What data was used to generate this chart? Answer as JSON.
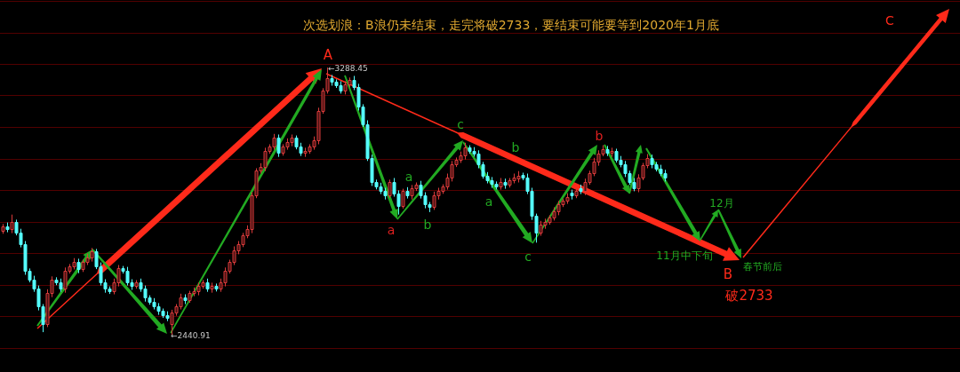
{
  "chart_data": {
    "type": "candlestick",
    "title": "次选划浪：B浪仍未结束，走完将破2733，要结束可能要等到2020年1月底",
    "categories": [
      null,
      null,
      null,
      null,
      null,
      null,
      null,
      null,
      null,
      null,
      null,
      null,
      null,
      null,
      null,
      null,
      null,
      null,
      null,
      null,
      null,
      null,
      null,
      null,
      null,
      null,
      null,
      null,
      null,
      null,
      null,
      null,
      null,
      null,
      null,
      null,
      null,
      null,
      null,
      null,
      null,
      null,
      null,
      null,
      null,
      null,
      null,
      null,
      null,
      null,
      null,
      null,
      null,
      null,
      null,
      null,
      null,
      null,
      null,
      null,
      null,
      null,
      null,
      null,
      null,
      null,
      null,
      null,
      null,
      null,
      null,
      null,
      null,
      null,
      null,
      null,
      null,
      null,
      null,
      null,
      null,
      null,
      null,
      null,
      null,
      null,
      null,
      null,
      null,
      null,
      null,
      null,
      null,
      null,
      null,
      null,
      null,
      null,
      null,
      null,
      null,
      null,
      null,
      null,
      null,
      null,
      null,
      null,
      null,
      null,
      null,
      null,
      null,
      null,
      null,
      null,
      null,
      null,
      null,
      null,
      null,
      null,
      null,
      null,
      null,
      null,
      null,
      null,
      null,
      null,
      null,
      null,
      null,
      null,
      null,
      null,
      null,
      null,
      null,
      null,
      null,
      null,
      null,
      null,
      null,
      null,
      null,
      null,
      null,
      null
    ],
    "ohlc": [
      [
        2770,
        2792,
        2761,
        2785
      ],
      [
        2785,
        2797,
        2766,
        2776
      ],
      [
        2776,
        2822,
        2763,
        2799
      ],
      [
        2799,
        2806,
        2756,
        2765
      ],
      [
        2765,
        2777,
        2718,
        2728
      ],
      [
        2728,
        2738,
        2631,
        2644
      ],
      [
        2644,
        2651,
        2607,
        2616
      ],
      [
        2616,
        2628,
        2577,
        2587
      ],
      [
        2587,
        2597,
        2518,
        2531
      ],
      [
        2531,
        2538,
        2449,
        2475
      ],
      [
        2475,
        2585,
        2465,
        2573
      ],
      [
        2573,
        2626,
        2560,
        2616
      ],
      [
        2616,
        2623,
        2598,
        2607
      ],
      [
        2607,
        2619,
        2577,
        2587
      ],
      [
        2587,
        2654,
        2574,
        2644
      ],
      [
        2644,
        2665,
        2635,
        2658
      ],
      [
        2658,
        2684,
        2648,
        2672
      ],
      [
        2672,
        2682,
        2636,
        2649
      ],
      [
        2649,
        2679,
        2640,
        2672
      ],
      [
        2672,
        2698,
        2662,
        2686
      ],
      [
        2686,
        2716,
        2673,
        2706
      ],
      [
        2706,
        2713,
        2649,
        2658
      ],
      [
        2658,
        2670,
        2597,
        2607
      ],
      [
        2607,
        2617,
        2574,
        2587
      ],
      [
        2587,
        2594,
        2570,
        2579
      ],
      [
        2579,
        2619,
        2569,
        2607
      ],
      [
        2607,
        2662,
        2594,
        2652
      ],
      [
        2652,
        2659,
        2635,
        2644
      ],
      [
        2644,
        2656,
        2597,
        2607
      ],
      [
        2607,
        2617,
        2583,
        2596
      ],
      [
        2596,
        2614,
        2587,
        2607
      ],
      [
        2607,
        2619,
        2577,
        2587
      ],
      [
        2587,
        2597,
        2546,
        2559
      ],
      [
        2559,
        2566,
        2536,
        2545
      ],
      [
        2545,
        2557,
        2521,
        2531
      ],
      [
        2531,
        2541,
        2504,
        2517
      ],
      [
        2517,
        2524,
        2494,
        2503
      ],
      [
        2503,
        2515,
        2484,
        2494
      ],
      [
        2475,
        2520,
        2440.91,
        2510
      ],
      [
        2510,
        2538,
        2501,
        2531
      ],
      [
        2531,
        2571,
        2521,
        2559
      ],
      [
        2559,
        2569,
        2538,
        2551
      ],
      [
        2551,
        2580,
        2542,
        2573
      ],
      [
        2573,
        2591,
        2563,
        2579
      ],
      [
        2579,
        2606,
        2566,
        2596
      ],
      [
        2596,
        2614,
        2587,
        2607
      ],
      [
        2607,
        2619,
        2577,
        2587
      ],
      [
        2587,
        2606,
        2574,
        2596
      ],
      [
        2596,
        2603,
        2578,
        2587
      ],
      [
        2587,
        2619,
        2577,
        2607
      ],
      [
        2607,
        2654,
        2594,
        2644
      ],
      [
        2644,
        2679,
        2635,
        2672
      ],
      [
        2672,
        2721,
        2662,
        2709
      ],
      [
        2709,
        2738,
        2696,
        2728
      ],
      [
        2728,
        2764,
        2719,
        2757
      ],
      [
        2757,
        2788,
        2747,
        2776
      ],
      [
        2776,
        2893,
        2763,
        2883
      ],
      [
        2883,
        2969,
        2874,
        2962
      ],
      [
        2962,
        2985,
        2952,
        2973
      ],
      [
        2973,
        3034,
        2960,
        3024
      ],
      [
        3024,
        3045,
        3015,
        3038
      ],
      [
        3038,
        3078,
        3028,
        3066
      ],
      [
        3066,
        3076,
        3005,
        3018
      ],
      [
        3018,
        3045,
        3009,
        3038
      ],
      [
        3038,
        3064,
        3028,
        3052
      ],
      [
        3052,
        3076,
        3039,
        3066
      ],
      [
        3066,
        3073,
        3029,
        3038
      ],
      [
        3038,
        3050,
        3008,
        3018
      ],
      [
        3018,
        3034,
        3005,
        3024
      ],
      [
        3024,
        3045,
        3015,
        3038
      ],
      [
        3038,
        3070,
        3028,
        3058
      ],
      [
        3058,
        3161,
        3045,
        3151
      ],
      [
        3151,
        3223,
        3142,
        3216
      ],
      [
        3216,
        3288.45,
        3206,
        3255
      ],
      [
        3255,
        3265,
        3231,
        3244
      ],
      [
        3244,
        3251,
        3224,
        3233
      ],
      [
        3233,
        3245,
        3206,
        3216
      ],
      [
        3216,
        3245,
        3203,
        3235
      ],
      [
        3235,
        3257,
        3226,
        3250
      ],
      [
        3250,
        3262,
        3217,
        3227
      ],
      [
        3227,
        3237,
        3152,
        3165
      ],
      [
        3165,
        3172,
        3100,
        3109
      ],
      [
        3109,
        3121,
        2992,
        3002
      ],
      [
        3002,
        3012,
        2913,
        2926
      ],
      [
        2926,
        2933,
        2902,
        2911
      ],
      [
        2911,
        2923,
        2887,
        2897
      ],
      [
        2897,
        2907,
        2870,
        2883
      ],
      [
        2883,
        2933,
        2874,
        2926
      ],
      [
        2926,
        2938,
        2879,
        2889
      ],
      [
        2889,
        2899,
        2822,
        2850
      ],
      [
        2850,
        2904,
        2841,
        2897
      ],
      [
        2897,
        2909,
        2873,
        2883
      ],
      [
        2883,
        2916,
        2870,
        2906
      ],
      [
        2906,
        2924,
        2897,
        2917
      ],
      [
        2917,
        2929,
        2873,
        2883
      ],
      [
        2883,
        2893,
        2842,
        2855
      ],
      [
        2855,
        2862,
        2830,
        2847
      ],
      [
        2847,
        2895,
        2837,
        2883
      ],
      [
        2883,
        2907,
        2870,
        2897
      ],
      [
        2897,
        2918,
        2888,
        2911
      ],
      [
        2911,
        2952,
        2901,
        2940
      ],
      [
        2940,
        2992,
        2927,
        2982
      ],
      [
        2982,
        3003,
        2973,
        2996
      ],
      [
        2996,
        3022,
        2986,
        3010
      ],
      [
        3010,
        3050,
        2997,
        3035
      ],
      [
        3035,
        3042,
        3015,
        3024
      ],
      [
        3024,
        3036,
        3006,
        3016
      ],
      [
        3016,
        3026,
        2969,
        2982
      ],
      [
        2982,
        2989,
        2936,
        2945
      ],
      [
        2945,
        2957,
        2921,
        2931
      ],
      [
        2931,
        2941,
        2907,
        2920
      ],
      [
        2920,
        2927,
        2902,
        2911
      ],
      [
        2911,
        2938,
        2901,
        2926
      ],
      [
        2926,
        2936,
        2904,
        2917
      ],
      [
        2917,
        2938,
        2908,
        2931
      ],
      [
        2931,
        2952,
        2921,
        2940
      ],
      [
        2937,
        2960,
        2924,
        2945
      ],
      [
        2948,
        2955,
        2931,
        2940
      ],
      [
        2940,
        2952,
        2887,
        2897
      ],
      [
        2897,
        2907,
        2805,
        2818
      ],
      [
        2818,
        2825,
        2733,
        2765
      ],
      [
        2765,
        2802,
        2755,
        2790
      ],
      [
        2790,
        2809,
        2777,
        2799
      ],
      [
        2799,
        2820,
        2790,
        2813
      ],
      [
        2813,
        2845,
        2803,
        2833
      ],
      [
        2833,
        2865,
        2820,
        2855
      ],
      [
        2855,
        2873,
        2846,
        2866
      ],
      [
        2866,
        2890,
        2856,
        2878
      ],
      [
        2891,
        2901,
        2870,
        2883
      ],
      [
        2883,
        2904,
        2874,
        2897
      ],
      [
        2905,
        2917,
        2887,
        2897
      ],
      [
        2897,
        2936,
        2884,
        2926
      ],
      [
        2926,
        2961,
        2917,
        2954
      ],
      [
        2954,
        3002,
        2944,
        2990
      ],
      [
        2990,
        3026,
        2977,
        3016
      ],
      [
        3016,
        3042,
        3007,
        3030
      ],
      [
        3030,
        3040,
        3008,
        3018
      ],
      [
        3018,
        3034,
        3005,
        3024
      ],
      [
        3024,
        3031,
        2987,
        2996
      ],
      [
        2996,
        3008,
        2972,
        2982
      ],
      [
        2982,
        2992,
        2941,
        2954
      ],
      [
        2954,
        2961,
        2917,
        2926
      ],
      [
        2926,
        2938,
        2896,
        2906
      ],
      [
        2906,
        2950,
        2893,
        2940
      ],
      [
        2940,
        2986,
        2931,
        2979
      ],
      [
        2979,
        3014,
        2969,
        3002
      ],
      [
        3002,
        3012,
        2969,
        2982
      ],
      [
        2982,
        2989,
        2959,
        2968
      ],
      [
        2968,
        2980,
        2944,
        2954
      ],
      [
        2954,
        2964,
        2927,
        2940
      ]
    ],
    "ylim": [
      2400,
      3500
    ],
    "yticks": [
      {
        "value": 2400,
        "label": null
      },
      {
        "value": 2500,
        "label": null
      },
      {
        "value": 2600,
        "label": null
      },
      {
        "value": 2700,
        "label": null
      },
      {
        "value": 2800,
        "label": null
      },
      {
        "value": 2900,
        "label": null
      },
      {
        "value": 3000,
        "label": null
      },
      {
        "value": 3100,
        "label": null
      },
      {
        "value": 3200,
        "label": null
      },
      {
        "value": 3300,
        "label": null
      },
      {
        "value": 3400,
        "label": null
      },
      {
        "value": 3500,
        "label": null
      }
    ],
    "grid": "y",
    "annotations": [
      "A",
      "←3288.45",
      "←2440.91",
      "a",
      "a",
      "b",
      "c",
      "b",
      "a",
      "c",
      "b",
      "11月中下旬",
      "12月",
      "春节前后",
      "B",
      "破2733",
      "C"
    ]
  }
}
